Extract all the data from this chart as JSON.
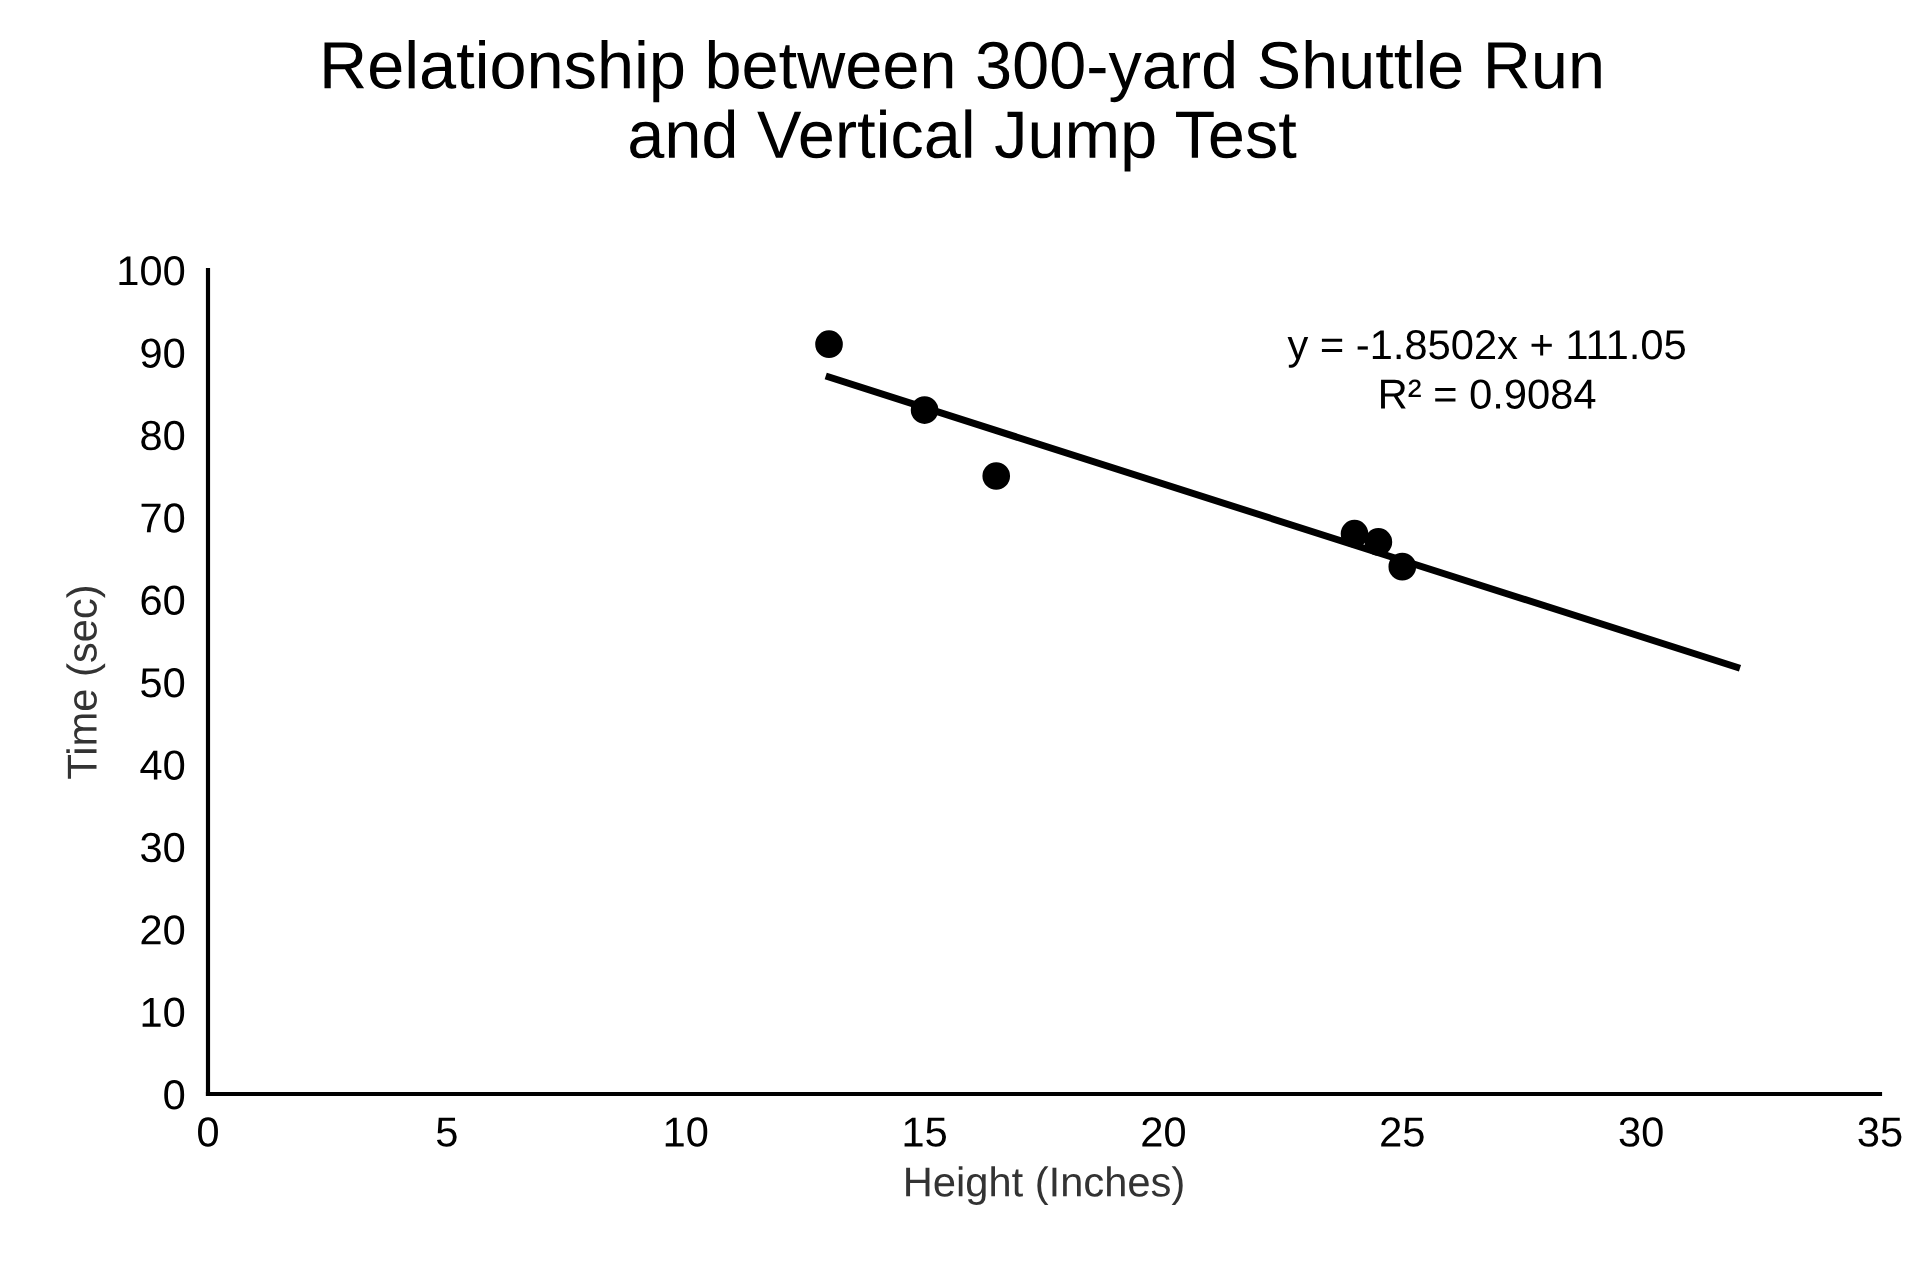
{
  "chart_data": {
    "type": "scatter",
    "title": "Relationship between 300-yard Shuttle Run\nand Vertical Jump Test",
    "xlabel": "Height (Inches)",
    "ylabel": "Time (sec)",
    "series": [
      {
        "marker": "circle",
        "color": "#000000",
        "x": [
          13.0,
          15.0,
          16.5,
          24.0,
          24.5,
          25.0
        ],
        "values": [
          91,
          83,
          75,
          68,
          67,
          64
        ]
      },
      {
        "type": "line",
        "marker": "none",
        "color": "#000000",
        "x": [
          13,
          32
        ],
        "values": [
          87.0,
          51.8
        ]
      }
    ],
    "annotations": [
      "y = -1.8502x + 111.05",
      "R² = 0.9084"
    ],
    "xlim": [
      0,
      35
    ],
    "xticks": [
      0,
      5,
      10,
      15,
      20,
      25,
      30,
      35
    ],
    "ylim": [
      0,
      100
    ],
    "yticks": [
      0,
      10,
      20,
      30,
      40,
      50,
      60,
      70,
      80,
      90,
      100
    ],
    "grid": false,
    "legend": false
  }
}
